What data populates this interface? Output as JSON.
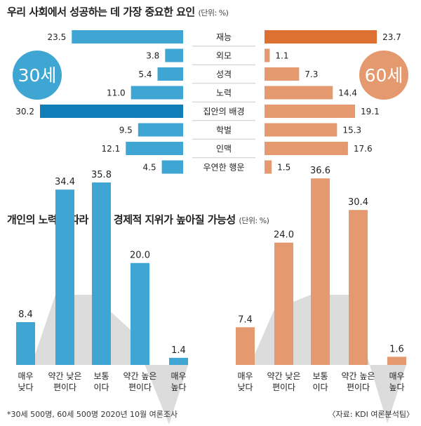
{
  "top_title": "우리 사회에서 성공하는 데 가장 중요한 요인",
  "top_unit": "(단위: %)",
  "bottom_title": "개인의 노력에 따라 사회 경제적 지위가 높아질 가능성",
  "bottom_unit": "(단위: %)",
  "footnote": "*30세 500명, 60세 500명 2020년 10월 여론조사",
  "source": "〈자료: KDI 여론분석팀〉",
  "colors": {
    "blue": "#3fa6d4",
    "blue_dark": "#0f7db8",
    "orange": "#e5996e",
    "orange_dark": "#dc7132",
    "shadow": "#dcdcdc"
  },
  "chart_data": [
    {
      "type": "bar",
      "orientation": "horizontal-butterfly",
      "categories": [
        "재능",
        "외모",
        "성격",
        "노력",
        "집안의 배경",
        "학벌",
        "인맥",
        "우연한 행운"
      ],
      "series": [
        {
          "name": "30세",
          "values": [
            23.5,
            3.8,
            5.4,
            11.0,
            30.2,
            9.5,
            12.1,
            4.5
          ]
        },
        {
          "name": "60세",
          "values": [
            23.7,
            1.1,
            7.3,
            14.4,
            19.1,
            15.3,
            17.6,
            1.5
          ]
        }
      ]
    },
    {
      "type": "bar",
      "categories": [
        "매우\n낮다",
        "약간 낮은\n편이다",
        "보통\n이다",
        "약간 높은\n편이다",
        "매우\n높다"
      ],
      "series": [
        {
          "name": "30세",
          "values": [
            8.4,
            34.4,
            35.8,
            20.0,
            1.4
          ]
        },
        {
          "name": "60세",
          "values": [
            7.4,
            24.0,
            36.6,
            30.4,
            1.6
          ]
        }
      ]
    }
  ]
}
